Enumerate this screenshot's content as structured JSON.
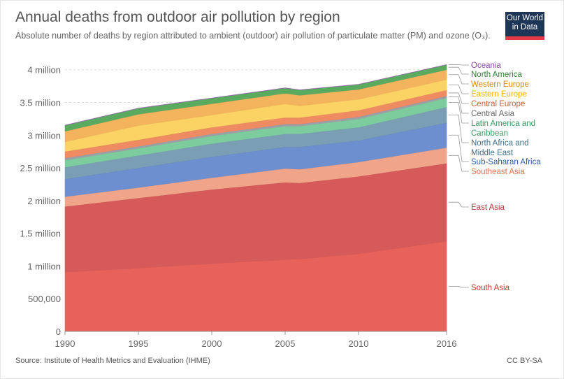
{
  "header": {
    "title": "Annual deaths from outdoor air pollution by region",
    "subtitle": "Absolute number of deaths by region attributed to ambient (outdoor) air pollution of particulate matter (PM) and ozone (O₃).",
    "logo_line1": "Our World",
    "logo_line2": "in Data"
  },
  "footer": {
    "source": "Source: Institute of Health Metrics and Evaluation (IHME)",
    "license": "CC BY-SA"
  },
  "colors": {
    "logo_bg": "#1d3557",
    "logo_bar": "#e63946"
  },
  "chart_data": {
    "type": "area",
    "stacked": true,
    "title": "Annual deaths from outdoor air pollution by region",
    "x": [
      1990,
      1995,
      2000,
      2005,
      2006,
      2010,
      2016
    ],
    "xticks": [
      1990,
      1995,
      2000,
      2005,
      2010,
      2016
    ],
    "yticks": [
      0,
      500000,
      1000000,
      1500000,
      2000000,
      2500000,
      3000000,
      3500000,
      4000000
    ],
    "ytick_labels": [
      "0",
      "500,000",
      "1 million",
      "1.5 million",
      "2 million",
      "2.5 million",
      "3 million",
      "3.5 million",
      "4 million"
    ],
    "ylim": [
      0,
      4200000
    ],
    "grid": "horizontal-dashed",
    "legend": "right, labels at series end",
    "series": [
      {
        "name": "South Asia",
        "color": "#e8625c",
        "label_color": "#c0392b",
        "values": [
          910000,
          970000,
          1040000,
          1100000,
          1110000,
          1190000,
          1380000
        ]
      },
      {
        "name": "East Asia",
        "color": "#d65a5a",
        "label_color": "#b03a3a",
        "values": [
          1000000,
          1070000,
          1130000,
          1180000,
          1160000,
          1180000,
          1190000
        ]
      },
      {
        "name": "Southeast Asia",
        "color": "#f0a58a",
        "label_color": "#e2734a",
        "values": [
          150000,
          160000,
          180000,
          210000,
          210000,
          220000,
          240000
        ]
      },
      {
        "name": "Sub-Saharan Africa",
        "color": "#6d8ecf",
        "label_color": "#2f5fa8",
        "values": [
          270000,
          300000,
          320000,
          330000,
          340000,
          330000,
          380000
        ]
      },
      {
        "name": "North Africa and Middle East",
        "color": "#7a9fb4",
        "label_color": "#3c6e88",
        "values": [
          180000,
          190000,
          200000,
          200000,
          200000,
          200000,
          240000
        ]
      },
      {
        "name": "Latin America and Caribbean",
        "color": "#7dcc9e",
        "label_color": "#3d9b63",
        "values": [
          110000,
          110000,
          120000,
          120000,
          120000,
          130000,
          140000
        ]
      },
      {
        "name": "Central Asia",
        "color": "#9f9fa8",
        "label_color": "#666666",
        "values": [
          30000,
          30000,
          30000,
          30000,
          30000,
          30000,
          30000
        ]
      },
      {
        "name": "Central Europe",
        "color": "#ef8b63",
        "label_color": "#d45b2a",
        "values": [
          100000,
          100000,
          100000,
          100000,
          100000,
          100000,
          90000
        ]
      },
      {
        "name": "Eastern Europe",
        "color": "#fbd264",
        "label_color": "#f1b400",
        "values": [
          150000,
          220000,
          190000,
          210000,
          180000,
          170000,
          160000
        ]
      },
      {
        "name": "Western Europe",
        "color": "#f4b35d",
        "label_color": "#d98b00",
        "values": [
          160000,
          170000,
          170000,
          160000,
          160000,
          150000,
          150000
        ]
      },
      {
        "name": "North America",
        "color": "#5aab60",
        "label_color": "#2e7d32",
        "values": [
          90000,
          90000,
          85000,
          80000,
          80000,
          75000,
          75000
        ]
      },
      {
        "name": "Oceania",
        "color": "#b07cc6",
        "label_color": "#8e44ad",
        "values": [
          3000,
          3000,
          3000,
          3000,
          3000,
          3000,
          3000
        ]
      }
    ]
  }
}
